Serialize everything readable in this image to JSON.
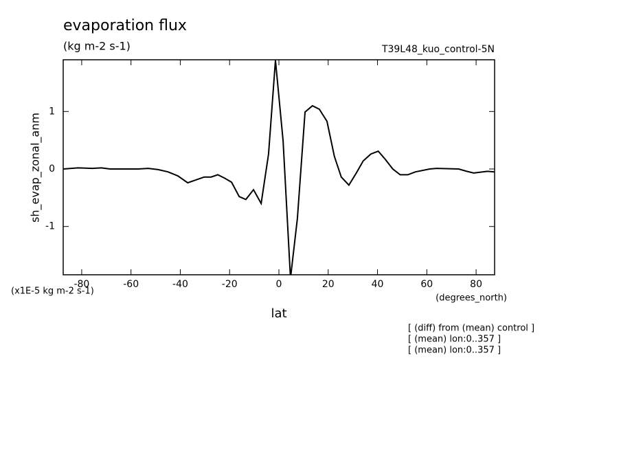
{
  "chart_data": {
    "type": "line",
    "title": "evaporation flux",
    "subtitle": "(kg m-2 s-1)",
    "run_label": "T39L48_kuo_control-5N",
    "y_label": "sh_evap_zonal_anm",
    "y_units": "(x1E-5 kg m-2 s-1)",
    "x_units": "(degrees_north)",
    "x_label": "lat",
    "notes": [
      "[ (diff) from (mean) control ]",
      "[ (mean) lon:0..357 ]",
      "[ (mean) lon:0..357 ]"
    ],
    "color": "#000000",
    "x": [
      -87.4,
      -81.5,
      -75.7,
      -72,
      -68.5,
      -57,
      -53,
      -49,
      -45,
      -41,
      -37,
      -30.3,
      -27.5,
      -24.8,
      -22,
      -19.2,
      -16.1,
      -13.4,
      -10.3,
      -7.2,
      -4.2,
      -1.4,
      1.7,
      4.7,
      7.5,
      10.6,
      13.6,
      16.4,
      19.5,
      22.5,
      25.3,
      28.4,
      31.4,
      34.2,
      37.3,
      40.3,
      43.1,
      46.2,
      49.2,
      52.3,
      55.4,
      61.2,
      64,
      72.9,
      76.2,
      79,
      84.6,
      87.4
    ],
    "values": [
      0,
      0.02,
      0.01,
      0.02,
      0,
      0,
      0.01,
      -0.01,
      -0.05,
      -0.12,
      -0.24,
      -0.14,
      -0.14,
      -0.1,
      -0.16,
      -0.23,
      -0.48,
      -0.53,
      -0.36,
      -0.6,
      0.26,
      1.89,
      0.49,
      -1.9,
      -0.86,
      0.99,
      1.1,
      1.04,
      0.83,
      0.22,
      -0.14,
      -0.28,
      -0.07,
      0.14,
      0.26,
      0.31,
      0.17,
      0,
      -0.1,
      -0.1,
      -0.05,
      0,
      0.01,
      0,
      -0.04,
      -0.07,
      -0.04,
      -0.05
    ],
    "xlim": [
      -87.5,
      87.5
    ],
    "ylim": [
      -1.84,
      1.9
    ],
    "xticks": [
      -80,
      -60,
      -40,
      -20,
      0,
      20,
      40,
      60,
      80
    ],
    "yticks": [
      -1,
      0,
      1
    ]
  }
}
